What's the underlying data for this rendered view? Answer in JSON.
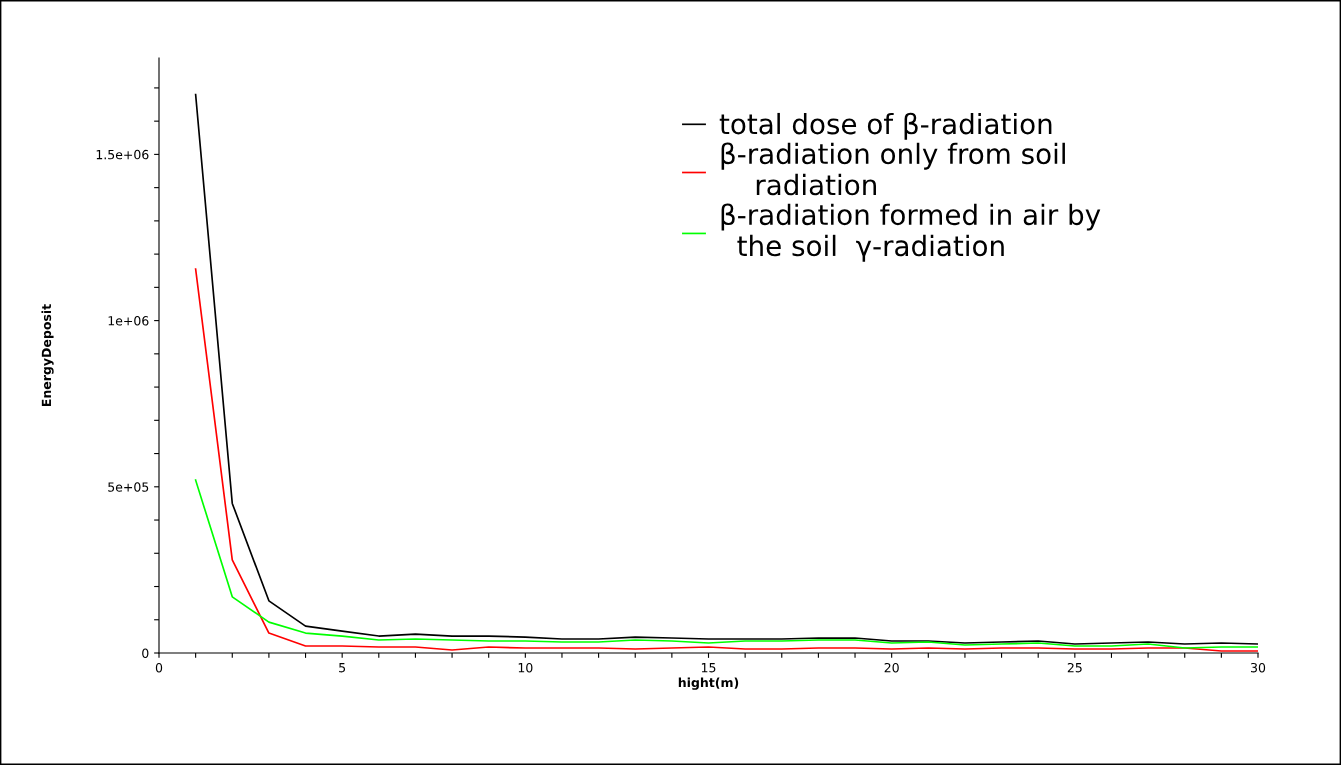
{
  "chart_data": {
    "type": "line",
    "xlabel": "hight(m)",
    "ylabel": "EnergyDeposit",
    "x": [
      1,
      2,
      3,
      4,
      5,
      6,
      7,
      8,
      9,
      10,
      11,
      12,
      13,
      14,
      15,
      16,
      17,
      18,
      19,
      20,
      21,
      22,
      23,
      24,
      25,
      26,
      27,
      28,
      29,
      30
    ],
    "series": [
      {
        "name": "total dose of β-radiation",
        "color": "#000000",
        "values": [
          1680000,
          450000,
          157000,
          81000,
          66000,
          51000,
          57000,
          51000,
          51000,
          48000,
          42000,
          42000,
          48000,
          45000,
          42000,
          42000,
          42000,
          45000,
          45000,
          36000,
          36000,
          30000,
          33000,
          36000,
          27000,
          30000,
          33000,
          27000,
          30000,
          27000
        ]
      },
      {
        "name": "β-radiation only from soil\n    radiation",
        "color": "#ff0000",
        "values": [
          1155000,
          280000,
          60000,
          21000,
          21000,
          18000,
          18000,
          9000,
          18000,
          15000,
          15000,
          15000,
          12000,
          15000,
          18000,
          12000,
          12000,
          15000,
          15000,
          12000,
          15000,
          12000,
          15000,
          15000,
          12000,
          12000,
          15000,
          15000,
          6000,
          6000
        ]
      },
      {
        "name": "β-radiation formed in air by\n  the soil  γ-radiation",
        "color": "#00ff00",
        "values": [
          520000,
          169000,
          93000,
          60000,
          51000,
          39000,
          42000,
          39000,
          36000,
          36000,
          33000,
          33000,
          39000,
          36000,
          30000,
          36000,
          36000,
          39000,
          39000,
          30000,
          33000,
          24000,
          27000,
          30000,
          21000,
          21000,
          27000,
          15000,
          18000,
          18000
        ]
      }
    ],
    "xlim": [
      0,
      30
    ],
    "xticks": [
      0,
      {
        "value": 1,
        "label": null
      },
      {
        "value": 2,
        "label": null
      },
      {
        "value": 3,
        "label": null
      },
      {
        "value": 4,
        "label": null
      },
      5,
      {
        "value": 6,
        "label": null
      },
      {
        "value": 7,
        "label": null
      },
      {
        "value": 8,
        "label": null
      },
      {
        "value": 9,
        "label": null
      },
      10,
      {
        "value": 11,
        "label": null
      },
      {
        "value": 12,
        "label": null
      },
      {
        "value": 13,
        "label": null
      },
      {
        "value": 14,
        "label": null
      },
      15,
      {
        "value": 16,
        "label": null
      },
      {
        "value": 17,
        "label": null
      },
      {
        "value": 18,
        "label": null
      },
      {
        "value": 19,
        "label": null
      },
      20,
      {
        "value": 21,
        "label": null
      },
      {
        "value": 22,
        "label": null
      },
      {
        "value": 23,
        "label": null
      },
      {
        "value": 24,
        "label": null
      },
      25,
      {
        "value": 26,
        "label": null
      },
      {
        "value": 27,
        "label": null
      },
      {
        "value": 28,
        "label": null
      },
      {
        "value": 29,
        "label": null
      },
      30
    ],
    "ylim": [
      0,
      1790000
    ],
    "yticks": [
      0,
      {
        "value": 100000,
        "label": null
      },
      {
        "value": 200000,
        "label": null
      },
      {
        "value": 300000,
        "label": null
      },
      {
        "value": 400000,
        "label": null
      },
      {
        "value": 500000,
        "label": "5e+05"
      },
      {
        "value": 600000,
        "label": null
      },
      {
        "value": 700000,
        "label": null
      },
      {
        "value": 800000,
        "label": null
      },
      {
        "value": 900000,
        "label": null
      },
      {
        "value": 1000000,
        "label": "1e+06"
      },
      {
        "value": 1100000,
        "label": null
      },
      {
        "value": 1200000,
        "label": null
      },
      {
        "value": 1300000,
        "label": null
      },
      {
        "value": 1400000,
        "label": null
      },
      {
        "value": 1500000,
        "label": "1.5e+06"
      },
      {
        "value": 1600000,
        "label": null
      },
      {
        "value": 1700000,
        "label": null
      }
    ],
    "grid": false,
    "legend": "top right",
    "marker": "none",
    "line_style": "solid"
  }
}
